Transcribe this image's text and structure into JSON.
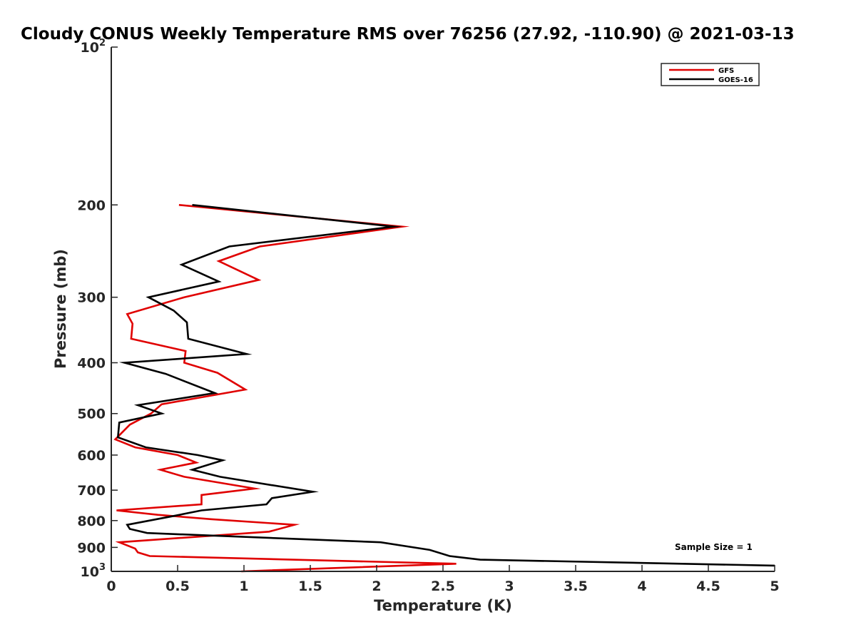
{
  "chart_data": {
    "type": "line",
    "title": "Cloudy CONUS Weekly Temperature RMS over 76256 (27.92, -110.90) @ 2021-03-13",
    "xlabel": "Temperature (K)",
    "ylabel": "Pressure (mb)",
    "xlim": [
      0,
      5
    ],
    "ylim": [
      100,
      1000
    ],
    "y_scale": "log",
    "y_reversed": true,
    "x_ticks": [
      "0",
      "0.5",
      "1",
      "1.5",
      "2",
      "2.5",
      "3",
      "3.5",
      "4",
      "4.5",
      "5"
    ],
    "y_ticks": [
      {
        "value": 100,
        "label": "10",
        "sup": "2"
      },
      {
        "value": 200,
        "label": "200",
        "sup": ""
      },
      {
        "value": 300,
        "label": "300",
        "sup": ""
      },
      {
        "value": 400,
        "label": "400",
        "sup": ""
      },
      {
        "value": 500,
        "label": "500",
        "sup": ""
      },
      {
        "value": 600,
        "label": "600",
        "sup": ""
      },
      {
        "value": 700,
        "label": "700",
        "sup": ""
      },
      {
        "value": 800,
        "label": "800",
        "sup": ""
      },
      {
        "value": 900,
        "label": "900",
        "sup": ""
      },
      {
        "value": 1000,
        "label": "10",
        "sup": "3"
      }
    ],
    "grid": false,
    "legend": "top-right",
    "annotation": "Sample Size = 1",
    "series": [
      {
        "name": "GFS",
        "color": "#e00000",
        "points": [
          [
            0.51,
            200
          ],
          [
            2.19,
            220
          ],
          [
            1.12,
            240
          ],
          [
            0.81,
            256
          ],
          [
            1.11,
            278
          ],
          [
            0.55,
            300
          ],
          [
            0.12,
            323
          ],
          [
            0.16,
            337
          ],
          [
            0.15,
            360
          ],
          [
            0.56,
            380
          ],
          [
            0.55,
            400
          ],
          [
            0.8,
            418
          ],
          [
            1.01,
            450
          ],
          [
            0.38,
            480
          ],
          [
            0.3,
            500
          ],
          [
            0.14,
            525
          ],
          [
            0.03,
            560
          ],
          [
            0.18,
            580
          ],
          [
            0.5,
            600
          ],
          [
            0.64,
            620
          ],
          [
            0.37,
            640
          ],
          [
            0.55,
            660
          ],
          [
            1.08,
            695
          ],
          [
            0.68,
            715
          ],
          [
            0.68,
            745
          ],
          [
            0.04,
            765
          ],
          [
            0.35,
            780
          ],
          [
            0.75,
            795
          ],
          [
            1.38,
            815
          ],
          [
            1.19,
            840
          ],
          [
            0.06,
            880
          ],
          [
            0.18,
            905
          ],
          [
            0.2,
            920
          ],
          [
            0.29,
            935
          ],
          [
            2.6,
            967
          ],
          [
            0.98,
            1000
          ]
        ]
      },
      {
        "name": "GOES-16",
        "color": "#000000",
        "points": [
          [
            0.61,
            200
          ],
          [
            2.13,
            220
          ],
          [
            0.89,
            240
          ],
          [
            0.53,
            260
          ],
          [
            0.81,
            280
          ],
          [
            0.28,
            300
          ],
          [
            0.47,
            318
          ],
          [
            0.57,
            335
          ],
          [
            0.58,
            360
          ],
          [
            1.02,
            385
          ],
          [
            0.1,
            400
          ],
          [
            0.41,
            420
          ],
          [
            0.78,
            457
          ],
          [
            0.2,
            482
          ],
          [
            0.38,
            500
          ],
          [
            0.06,
            520
          ],
          [
            0.05,
            555
          ],
          [
            0.26,
            580
          ],
          [
            0.65,
            600
          ],
          [
            0.84,
            614
          ],
          [
            0.61,
            640
          ],
          [
            0.82,
            660
          ],
          [
            1.52,
            705
          ],
          [
            1.21,
            725
          ],
          [
            1.17,
            745
          ],
          [
            0.68,
            765
          ],
          [
            0.46,
            785
          ],
          [
            0.12,
            815
          ],
          [
            0.14,
            830
          ],
          [
            0.27,
            845
          ],
          [
            2.03,
            880
          ],
          [
            2.4,
            910
          ],
          [
            2.55,
            935
          ],
          [
            2.78,
            950
          ],
          [
            5.0,
            975
          ]
        ]
      }
    ]
  }
}
